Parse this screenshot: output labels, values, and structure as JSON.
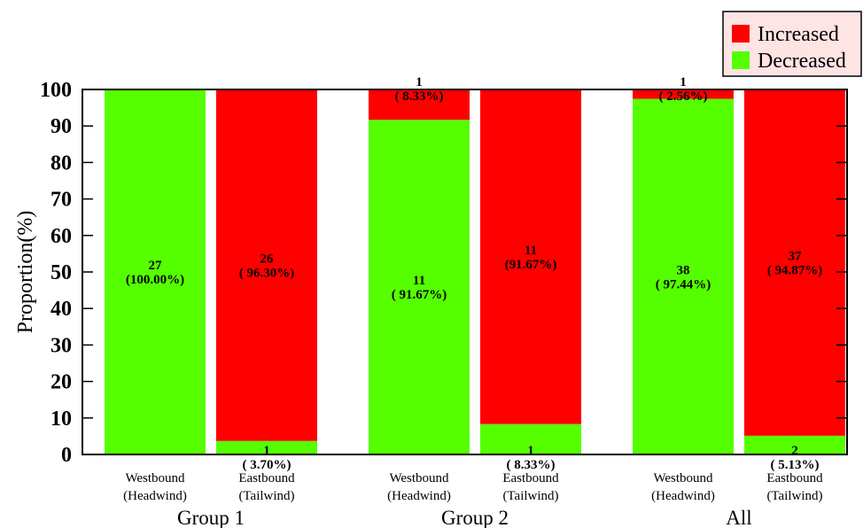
{
  "chart_data": {
    "type": "bar",
    "stacked": true,
    "ylabel": "Proportion(%)",
    "ylim": [
      0,
      100
    ],
    "yticks": [
      "0",
      "10",
      "20",
      "30",
      "40",
      "50",
      "60",
      "70",
      "80",
      "90",
      "100"
    ],
    "grid": false,
    "legend_position": "top-right",
    "legend": [
      {
        "name": "Increased",
        "color": "#ff0000"
      },
      {
        "name": "Decreased",
        "color": "#55ff00"
      }
    ],
    "groups": [
      {
        "label": "Group 1",
        "bars": [
          {
            "line1": "Westbound",
            "line2": "(Headwind)",
            "decreased": {
              "value": 100.0,
              "count": "27",
              "pct": "(100.00%)"
            },
            "increased": {
              "value": 0.0,
              "count": "",
              "pct": ""
            }
          },
          {
            "line1": "Eastbound",
            "line2": "(Tailwind)",
            "decreased": {
              "value": 3.7,
              "count": "1",
              "pct": "( 3.70%)"
            },
            "increased": {
              "value": 96.3,
              "count": "26",
              "pct": "( 96.30%)"
            }
          }
        ]
      },
      {
        "label": "Group 2",
        "bars": [
          {
            "line1": "Westbound",
            "line2": "(Headwind)",
            "decreased": {
              "value": 91.67,
              "count": "11",
              "pct": "( 91.67%)"
            },
            "increased": {
              "value": 8.33,
              "count": "1",
              "pct": "( 8.33%)"
            }
          },
          {
            "line1": "Eastbound",
            "line2": "(Tailwind)",
            "decreased": {
              "value": 8.33,
              "count": "1",
              "pct": "( 8.33%)"
            },
            "increased": {
              "value": 91.67,
              "count": "11",
              "pct": "(91.67%)"
            }
          }
        ]
      },
      {
        "label": "All",
        "bars": [
          {
            "line1": "Westbound",
            "line2": "(Headwind)",
            "decreased": {
              "value": 97.44,
              "count": "38",
              "pct": "( 97.44%)"
            },
            "increased": {
              "value": 2.56,
              "count": "1",
              "pct": "( 2.56%)"
            }
          },
          {
            "line1": "Eastbound",
            "line2": "(Tailwind)",
            "decreased": {
              "value": 5.13,
              "count": "2",
              "pct": "( 5.13%)"
            },
            "increased": {
              "value": 94.87,
              "count": "37",
              "pct": "( 94.87%)"
            }
          }
        ]
      }
    ]
  }
}
